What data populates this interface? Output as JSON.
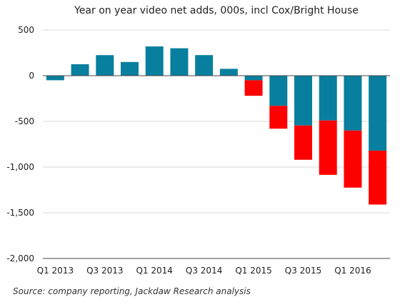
{
  "chart_data": {
    "type": "bar",
    "stacked": true,
    "title": "Year on year video net adds, 000s, incl Cox/Bright House",
    "source": "Source: company reporting, Jackdaw Research analysis",
    "categories": [
      "Q1 2013",
      "Q2 2013",
      "Q3 2013",
      "Q4 2013",
      "Q1 2014",
      "Q2 2014",
      "Q3 2014",
      "Q4 2014",
      "Q1 2015",
      "Q2 2015",
      "Q3 2015",
      "Q4 2015",
      "Q1 2016",
      "Q2 2016"
    ],
    "x_tick_labels": [
      "Q1 2013",
      "",
      "Q3 2013",
      "",
      "Q1 2014",
      "",
      "Q3 2014",
      "",
      "Q1 2015",
      "",
      "Q3 2015",
      "",
      "Q1 2016",
      ""
    ],
    "series": [
      {
        "values": [
          -50,
          125,
          225,
          150,
          320,
          300,
          225,
          75,
          -50,
          -330,
          -545,
          -490,
          -600,
          -820
        ]
      },
      {
        "values": [
          0,
          0,
          0,
          0,
          0,
          0,
          0,
          0,
          -170,
          -250,
          -375,
          -595,
          -625,
          -590
        ]
      }
    ],
    "colors": [
      "#087f9e",
      "#ff0000"
    ],
    "ylim": [
      -2000,
      500
    ],
    "yticks": [
      500,
      0,
      -500,
      -1000,
      -1500,
      -2000
    ],
    "ytick_labels": [
      "500",
      "0",
      "-500",
      "-1,000",
      "-1,500",
      "-2,000"
    ],
    "grid": true,
    "legend": "none"
  }
}
